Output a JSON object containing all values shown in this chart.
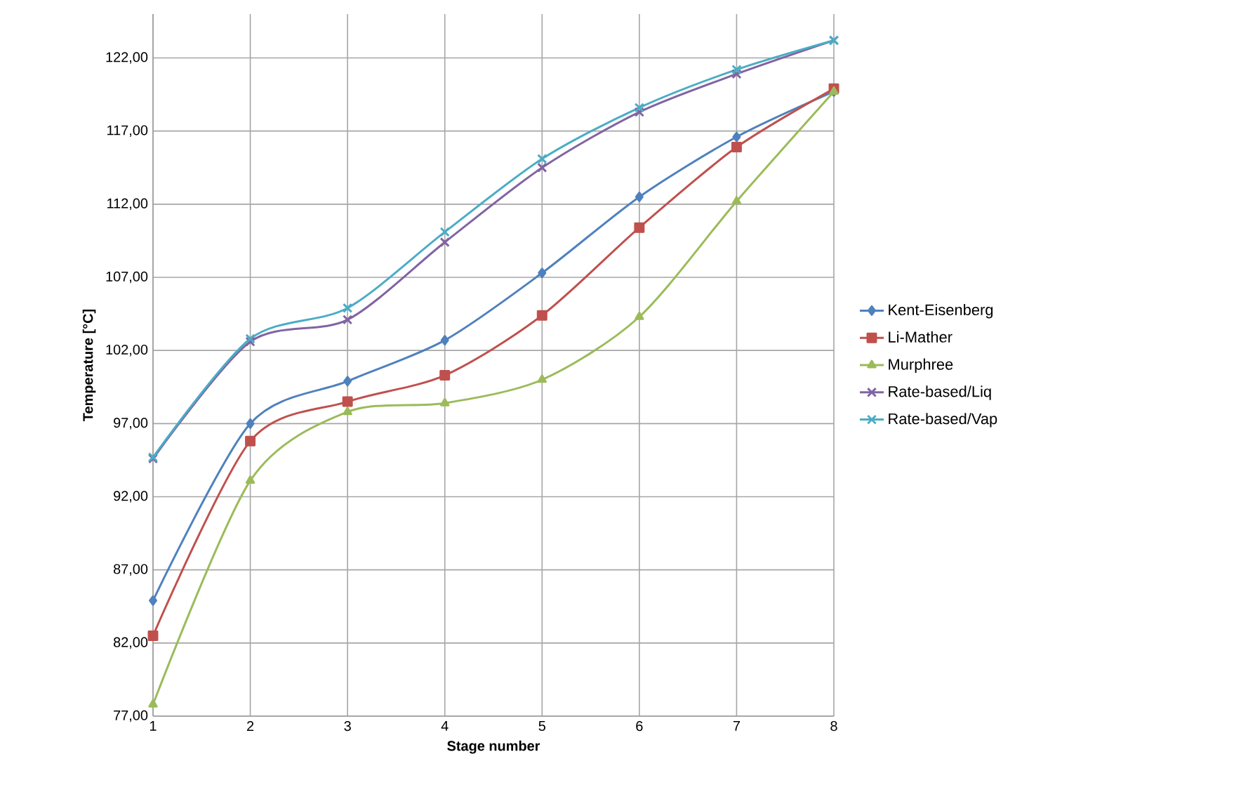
{
  "chart_data": {
    "type": "line",
    "xlabel": "Stage number",
    "ylabel": "Temperature [°C]",
    "x": [
      1,
      2,
      3,
      4,
      5,
      6,
      7,
      8
    ],
    "xlim": [
      1,
      8
    ],
    "xticks": [
      1,
      2,
      3,
      4,
      5,
      6,
      7,
      8
    ],
    "ylim": [
      77,
      125
    ],
    "yticks": [
      {
        "value": 77,
        "label": "77,00"
      },
      {
        "value": 82,
        "label": "82,00"
      },
      {
        "value": 87,
        "label": "87,00"
      },
      {
        "value": 92,
        "label": "92,00"
      },
      {
        "value": 97,
        "label": "97,00"
      },
      {
        "value": 102,
        "label": "102,00"
      },
      {
        "value": 107,
        "label": "107,00"
      },
      {
        "value": 112,
        "label": "112,00"
      },
      {
        "value": 117,
        "label": "117,00"
      },
      {
        "value": 122,
        "label": "122,00"
      }
    ],
    "grid": true,
    "legend": "right",
    "series": [
      {
        "name": "Kent-Eisenberg",
        "color": "#4f81bd",
        "marker": "diamond",
        "values": [
          84.9,
          97.0,
          99.9,
          102.7,
          107.3,
          112.5,
          116.6,
          119.7
        ]
      },
      {
        "name": "Li-Mather",
        "color": "#c0504d",
        "marker": "square",
        "values": [
          82.5,
          95.8,
          98.5,
          100.3,
          104.4,
          110.4,
          115.9,
          119.9
        ]
      },
      {
        "name": "Murphree",
        "color": "#9bbb59",
        "marker": "triangle",
        "values": [
          77.8,
          93.1,
          97.8,
          98.4,
          100.0,
          104.3,
          112.2,
          119.7
        ]
      },
      {
        "name": "Rate-based/Liq",
        "color": "#8064a2",
        "marker": "cross",
        "values": [
          94.6,
          102.6,
          104.1,
          109.4,
          114.5,
          118.3,
          120.9,
          123.2
        ]
      },
      {
        "name": "Rate-based/Vap",
        "color": "#4bacc6",
        "marker": "cross",
        "values": [
          94.7,
          102.8,
          104.9,
          110.1,
          115.1,
          118.6,
          121.2,
          123.2
        ]
      }
    ]
  }
}
